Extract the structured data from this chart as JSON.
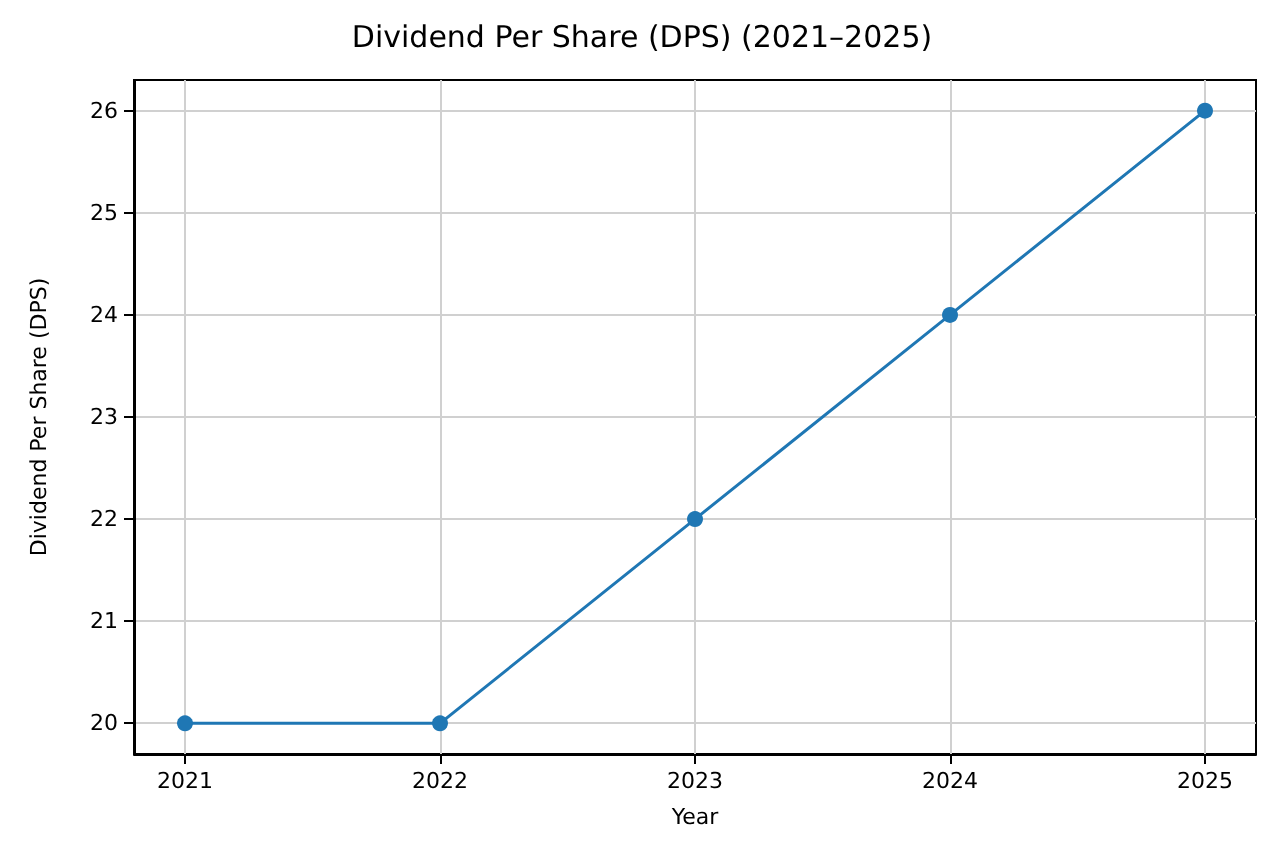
{
  "chart_data": {
    "type": "line",
    "title": "Dividend Per Share (DPS) (2021–2025)",
    "xlabel": "Year",
    "ylabel": "Dividend Per Share (DPS)",
    "x": [
      2021,
      2022,
      2023,
      2024,
      2025
    ],
    "series": [
      {
        "color": "#1f77b4",
        "values": [
          20,
          20,
          22,
          24,
          26
        ]
      }
    ],
    "xlim": [
      2020.8,
      2025.2
    ],
    "xticks": [
      2021,
      2022,
      2023,
      2024,
      2025
    ],
    "ylim": [
      19.7,
      26.3
    ],
    "yticks": [
      20,
      21,
      22,
      23,
      24,
      25,
      26
    ],
    "grid": true,
    "marker": "circle",
    "line_style": "solid"
  }
}
